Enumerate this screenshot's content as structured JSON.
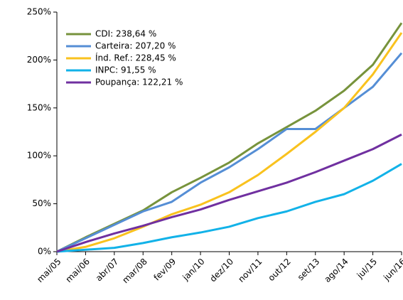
{
  "chart_data": {
    "type": "line",
    "categories": [
      "mai/05",
      "mai/06",
      "abr/07",
      "mar/08",
      "fev/09",
      "jan/10",
      "dez/10",
      "nov/11",
      "out/12",
      "set/13",
      "ago/14",
      "jul/15",
      "jun/16"
    ],
    "series": [
      {
        "name": "CDI: 238,64 %",
        "color": "#77933c",
        "values": [
          0,
          15,
          29,
          43,
          62,
          77,
          93,
          113,
          130,
          147,
          168,
          195,
          238.64
        ]
      },
      {
        "name": "Carteira: 207,20 %",
        "color": "#558ed5",
        "values": [
          0,
          14,
          28,
          42,
          52,
          72,
          88,
          107,
          128,
          128,
          150,
          172,
          207.2
        ]
      },
      {
        "name": "Índ. Ref.: 228,45 %",
        "color": "#f9c21e",
        "values": [
          0,
          5,
          14,
          26,
          39,
          49,
          62,
          80,
          102,
          125,
          150,
          185,
          228.45
        ]
      },
      {
        "name": "INPC: 91,55 %",
        "color": "#12b2e8",
        "values": [
          0,
          2,
          4,
          9,
          15,
          20,
          26,
          35,
          42,
          52,
          60,
          74,
          91.55
        ]
      },
      {
        "name": "Poupança: 122,21 %",
        "color": "#7030a0",
        "values": [
          0,
          10,
          19,
          27,
          36,
          44,
          54,
          63,
          72,
          83,
          95,
          107,
          122.21
        ]
      }
    ],
    "ylim": [
      0,
      250
    ],
    "yticks": [
      {
        "value": 0,
        "label": "0%"
      },
      {
        "value": 50,
        "label": "50%"
      },
      {
        "value": 100,
        "label": "100%"
      },
      {
        "value": 150,
        "label": "150%"
      },
      {
        "value": 200,
        "label": "200%"
      },
      {
        "value": 250,
        "label": "250%"
      }
    ],
    "legend": "upper left"
  }
}
